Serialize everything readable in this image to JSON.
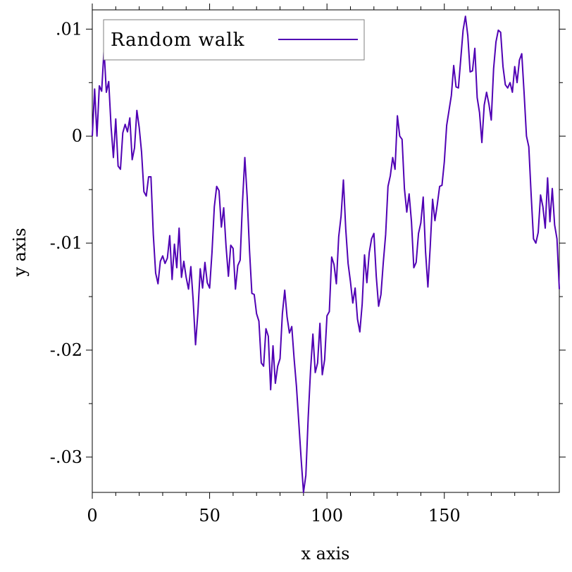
{
  "chart_data": {
    "type": "line",
    "title": "",
    "xlabel": "x axis",
    "ylabel": "y axis",
    "xlim": [
      0,
      199
    ],
    "ylim": [
      -0.0333,
      0.0118
    ],
    "x_ticks": [
      0,
      50,
      100,
      150
    ],
    "x_tick_labels": [
      "0",
      "50",
      "100",
      "150"
    ],
    "y_ticks": [
      0.01,
      0,
      -0.01,
      -0.02,
      -0.03
    ],
    "y_tick_labels": [
      ".01",
      "0",
      "-.01",
      "-.02",
      "-.03"
    ],
    "grid": false,
    "legend": "top-left",
    "line_color": "#5000B4",
    "series": [
      {
        "name": "Random walk",
        "x": [
          0,
          1,
          2,
          3,
          4,
          5,
          6,
          7,
          8,
          9,
          10,
          11,
          12,
          13,
          14,
          15,
          16,
          17,
          18,
          19,
          20,
          21,
          22,
          23,
          24,
          25,
          26,
          27,
          28,
          29,
          30,
          31,
          32,
          33,
          34,
          35,
          36,
          37,
          38,
          39,
          40,
          41,
          42,
          43,
          44,
          45,
          46,
          47,
          48,
          49,
          50,
          51,
          52,
          53,
          54,
          55,
          56,
          57,
          58,
          59,
          60,
          61,
          62,
          63,
          64,
          65,
          66,
          67,
          68,
          69,
          70,
          71,
          72,
          73,
          74,
          75,
          76,
          77,
          78,
          79,
          80,
          81,
          82,
          83,
          84,
          85,
          86,
          87,
          88,
          89,
          90,
          91,
          92,
          93,
          94,
          95,
          96,
          97,
          98,
          99,
          100,
          101,
          102,
          103,
          104,
          105,
          106,
          107,
          108,
          109,
          110,
          111,
          112,
          113,
          114,
          115,
          116,
          117,
          118,
          119,
          120,
          121,
          122,
          123,
          124,
          125,
          126,
          127,
          128,
          129,
          130,
          131,
          132,
          133,
          134,
          135,
          136,
          137,
          138,
          139,
          140,
          141,
          142,
          143,
          144,
          145,
          146,
          147,
          148,
          149,
          150,
          151,
          152,
          153,
          154,
          155,
          156,
          157,
          158,
          159,
          160,
          161,
          162,
          163,
          164,
          165,
          166,
          167,
          168,
          169,
          170,
          171,
          172,
          173,
          174,
          175,
          176,
          177,
          178,
          179,
          180,
          181,
          182,
          183,
          184,
          185,
          186,
          187,
          188,
          189,
          190,
          191,
          192,
          193,
          194,
          195,
          196,
          197,
          198,
          199
        ],
        "values": [
          0,
          0.0044,
          0,
          0.0047,
          0.0042,
          0.0081,
          0.0041,
          0.0051,
          0.0009,
          -0.002,
          0.0016,
          -0.0028,
          -0.0031,
          0.0003,
          0.0011,
          0.0004,
          0.0017,
          -0.0022,
          -0.0011,
          0.0024,
          0.0008,
          -0.0015,
          -0.0052,
          -0.0056,
          -0.0038,
          -0.0038,
          -0.0092,
          -0.0128,
          -0.0138,
          -0.0117,
          -0.0112,
          -0.0119,
          -0.0114,
          -0.0093,
          -0.0134,
          -0.0101,
          -0.0123,
          -0.0086,
          -0.0132,
          -0.0117,
          -0.0132,
          -0.0143,
          -0.0122,
          -0.0154,
          -0.0195,
          -0.0165,
          -0.0124,
          -0.0142,
          -0.0118,
          -0.0137,
          -0.0142,
          -0.0109,
          -0.0066,
          -0.0047,
          -0.0051,
          -0.0085,
          -0.0067,
          -0.0103,
          -0.0131,
          -0.0102,
          -0.0105,
          -0.0143,
          -0.0121,
          -0.0116,
          -0.0062,
          -0.002,
          -0.0057,
          -0.0107,
          -0.0147,
          -0.0148,
          -0.0166,
          -0.0173,
          -0.0212,
          -0.0215,
          -0.018,
          -0.0187,
          -0.0237,
          -0.0196,
          -0.0231,
          -0.0215,
          -0.0208,
          -0.0166,
          -0.0144,
          -0.0169,
          -0.0184,
          -0.0178,
          -0.0208,
          -0.0234,
          -0.0268,
          -0.0302,
          -0.0333,
          -0.0317,
          -0.0263,
          -0.0219,
          -0.0185,
          -0.0221,
          -0.0212,
          -0.0175,
          -0.0223,
          -0.0209,
          -0.0168,
          -0.0164,
          -0.0113,
          -0.012,
          -0.0138,
          -0.0094,
          -0.0075,
          -0.0041,
          -0.0087,
          -0.0119,
          -0.0136,
          -0.0156,
          -0.0142,
          -0.0171,
          -0.0183,
          -0.0157,
          -0.0111,
          -0.0137,
          -0.0109,
          -0.0096,
          -0.0091,
          -0.0131,
          -0.0159,
          -0.0148,
          -0.0118,
          -0.0092,
          -0.0047,
          -0.0037,
          -0.002,
          -0.0031,
          0.0019,
          0,
          -0.0003,
          -0.0049,
          -0.0071,
          -0.0054,
          -0.008,
          -0.0123,
          -0.0118,
          -0.0091,
          -0.0081,
          -0.0057,
          -0.0108,
          -0.0141,
          -0.0103,
          -0.0059,
          -0.0079,
          -0.0064,
          -0.0047,
          -0.0046,
          -0.0024,
          0.001,
          0.0024,
          0.0038,
          0.0066,
          0.0046,
          0.0045,
          0.0072,
          0.0099,
          0.0112,
          0.0094,
          0.006,
          0.0061,
          0.0082,
          0.0036,
          0.0022,
          -0.0006,
          0.0029,
          0.0041,
          0.003,
          0.0015,
          0.0063,
          0.0088,
          0.0099,
          0.0097,
          0.0065,
          0.0048,
          0.0045,
          0.005,
          0.0041,
          0.0065,
          0.005,
          0.0071,
          0.0077,
          0.004,
          0,
          -0.001,
          -0.0055,
          -0.0096,
          -0.01,
          -0.009,
          -0.0055,
          -0.0066,
          -0.0086,
          -0.0039,
          -0.008,
          -0.0049,
          -0.0083,
          -0.0096,
          -0.0143
        ]
      }
    ]
  }
}
